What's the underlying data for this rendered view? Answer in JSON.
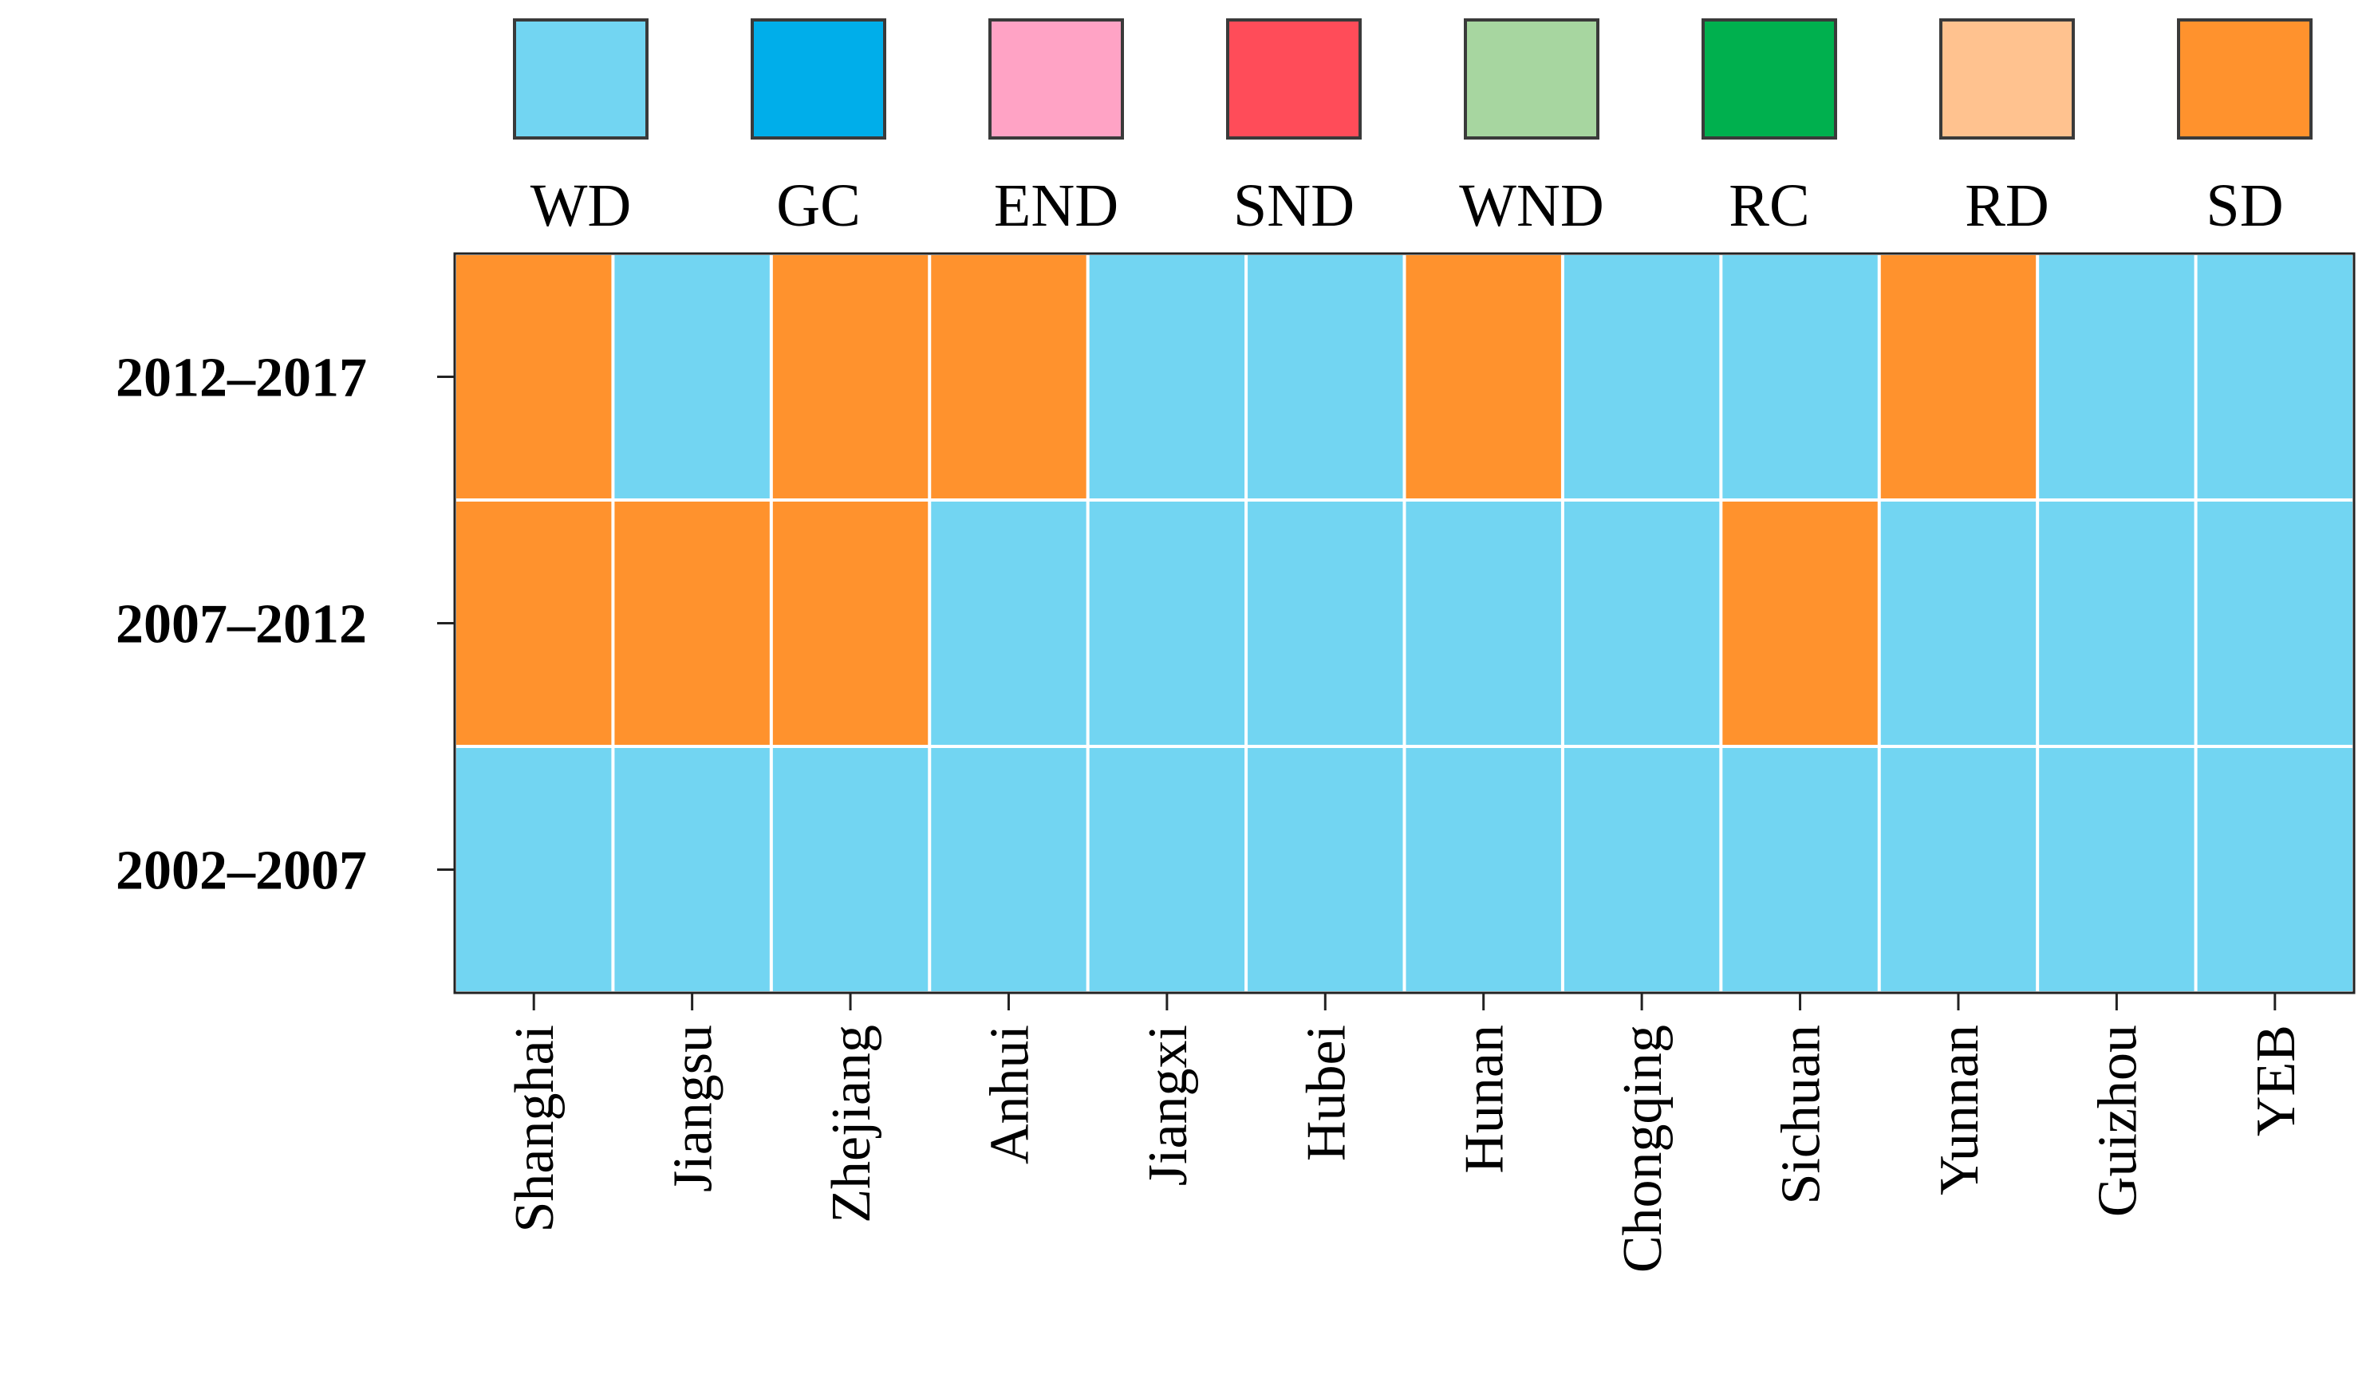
{
  "chart_data": {
    "type": "heatmap",
    "title": "",
    "xlabel": "",
    "ylabel": "",
    "legend": {
      "placement": "top",
      "entries": [
        {
          "label": "WD",
          "color": "#72d5f2"
        },
        {
          "label": "GC",
          "color": "#00aeea"
        },
        {
          "label": "END",
          "color": "#ffa3c5"
        },
        {
          "label": "SND",
          "color": "#ff4c59"
        },
        {
          "label": "WND",
          "color": "#a7d6a0"
        },
        {
          "label": "RC",
          "color": "#00b04e"
        },
        {
          "label": "RD",
          "color": "#ffc28f"
        },
        {
          "label": "SD",
          "color": "#ff922d"
        }
      ]
    },
    "columns": [
      "Shanghai",
      "Jiangsu",
      "Zhejiang",
      "Anhui",
      "Jiangxi",
      "Hubei",
      "Hunan",
      "Chongqing",
      "Sichuan",
      "Yunnan",
      "Guizhou",
      "YEB"
    ],
    "rows": [
      "2012–2017",
      "2007–2012",
      "2002–2007"
    ],
    "values": [
      [
        "SD",
        "WD",
        "SD",
        "SD",
        "WD",
        "WD",
        "SD",
        "WD",
        "WD",
        "SD",
        "WD",
        "WD"
      ],
      [
        "SD",
        "SD",
        "SD",
        "WD",
        "WD",
        "WD",
        "WD",
        "WD",
        "SD",
        "WD",
        "WD",
        "WD"
      ],
      [
        "WD",
        "WD",
        "WD",
        "WD",
        "WD",
        "WD",
        "WD",
        "WD",
        "WD",
        "WD",
        "WD",
        "WD"
      ]
    ]
  }
}
